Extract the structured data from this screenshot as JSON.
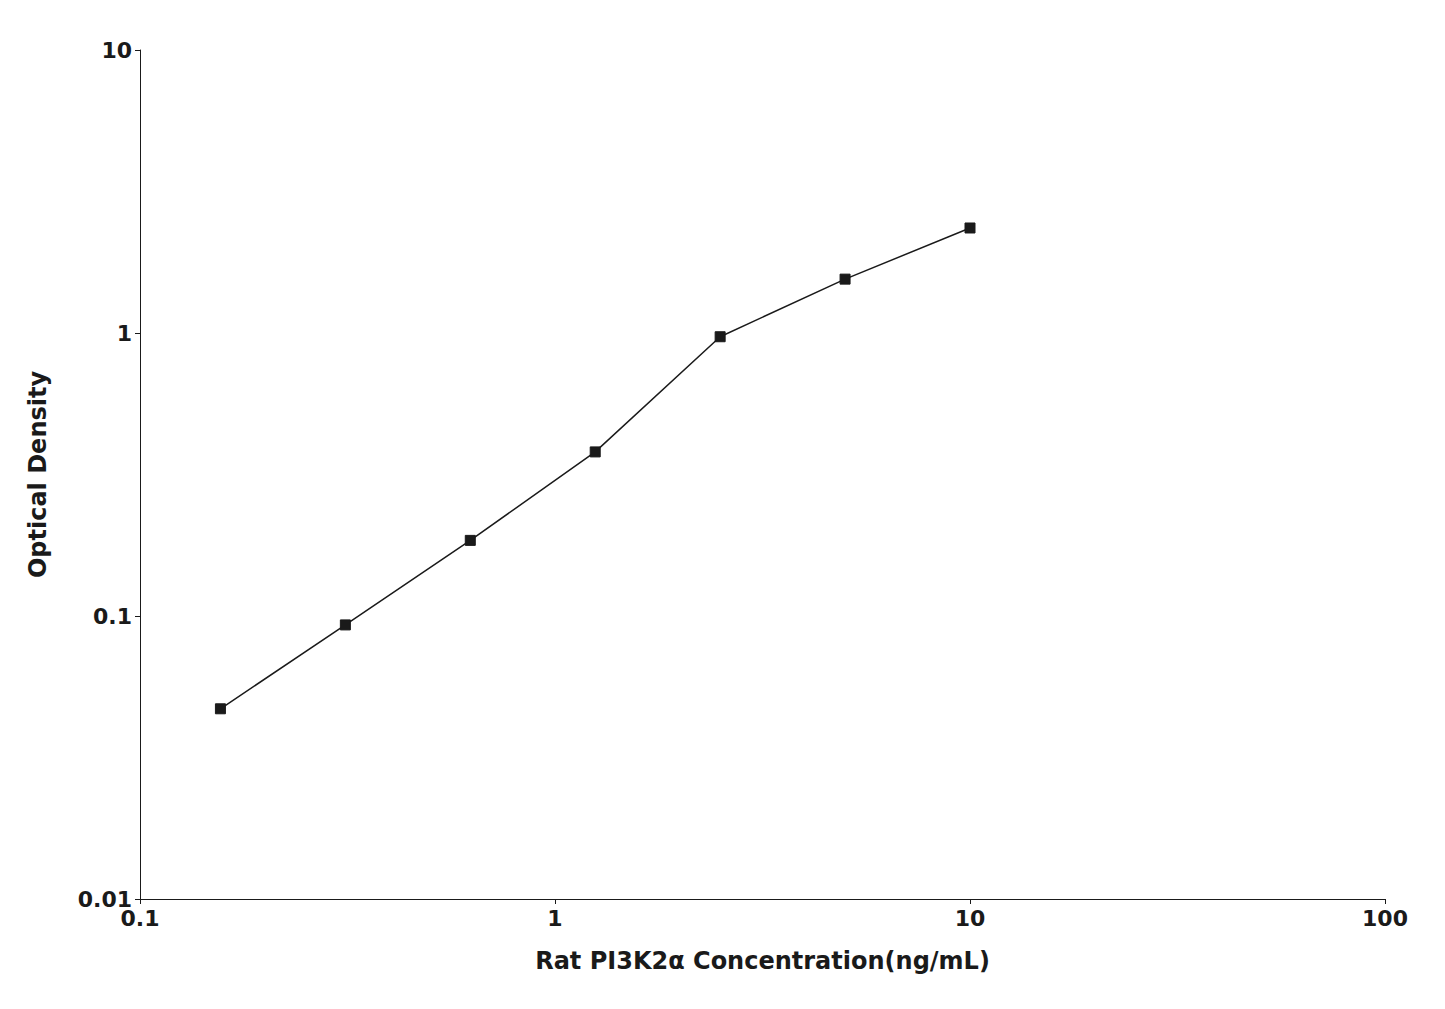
{
  "chart_data": {
    "type": "line",
    "x": [
      0.15625,
      0.3125,
      0.625,
      1.25,
      2.5,
      5.0,
      10.0
    ],
    "values": [
      0.047,
      0.093,
      0.185,
      0.38,
      0.97,
      1.55,
      2.35
    ],
    "xlabel": "Rat PI3K2α Concentration(ng/mL)",
    "ylabel": "Optical Density",
    "xlim": [
      0.1,
      100
    ],
    "ylim": [
      0.01,
      10
    ],
    "xticks": [
      0.1,
      1,
      10,
      100
    ],
    "yticks": [
      0.01,
      0.1,
      1,
      10
    ],
    "log": true,
    "grid": false,
    "color": "#1a1a1a",
    "marker": "square"
  }
}
